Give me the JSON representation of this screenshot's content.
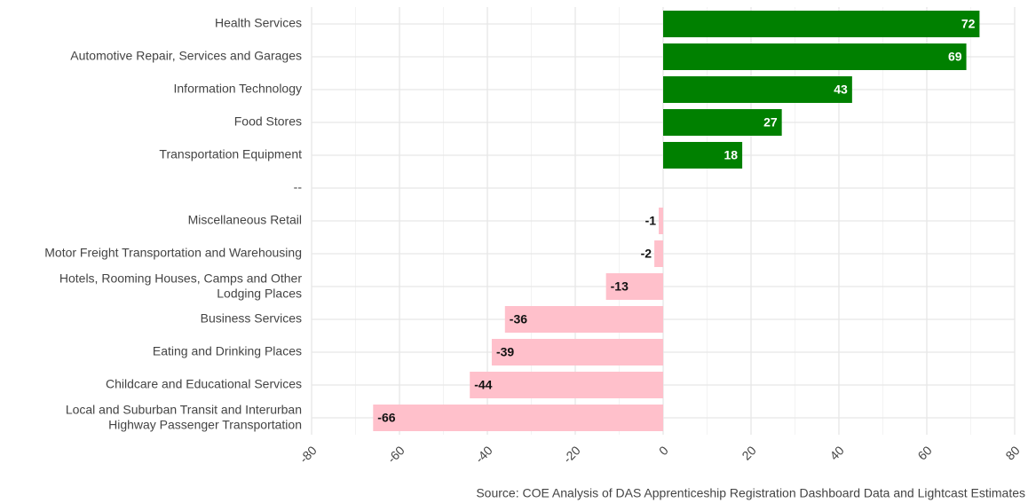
{
  "chart_data": {
    "type": "hbar",
    "categories": [
      "Health Services",
      "Automotive Repair, Services and Garages",
      "Information Technology",
      "Food Stores",
      "Transportation Equipment",
      "--",
      "Miscellaneous Retail",
      "Motor Freight Transportation and Warehousing",
      "Hotels, Rooming Houses, Camps and Other\nLodging Places",
      "Business Services",
      "Eating and Drinking Places",
      "Childcare and Educational Services",
      "Local and Suburban Transit and Interurban\nHighway Passenger Transportation"
    ],
    "values": [
      72,
      69,
      43,
      27,
      18,
      null,
      -1,
      -2,
      -13,
      -36,
      -39,
      -44,
      -66
    ],
    "positive_color": "#008000",
    "negative_color": "#ffc0cb",
    "xlim": [
      -80,
      80
    ],
    "xticks": [
      -80,
      -60,
      -40,
      -20,
      0,
      20,
      40,
      60,
      80
    ],
    "grid": true,
    "caption": "Source: COE Analysis of DAS Apprenticeship Registration Dashboard Data and Lightcast Estimates"
  }
}
